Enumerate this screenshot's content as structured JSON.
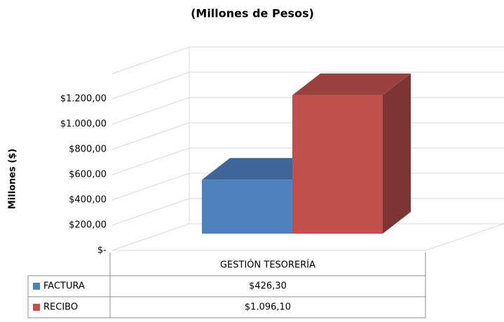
{
  "chart_data": {
    "type": "bar3d",
    "title": "(Millones de Pesos)",
    "y_label": "Millones ($)",
    "categories": [
      "GESTIÓN TESORERÍA"
    ],
    "series": [
      {
        "name": "FACTURA",
        "color": "#4f81bd",
        "values": [
          426.3
        ],
        "value_labels": [
          "$426,30"
        ]
      },
      {
        "name": "RECIBO",
        "color": "#c0504d",
        "values": [
          1096.1
        ],
        "value_labels": [
          "$1.096,10"
        ]
      }
    ],
    "ylim": [
      0,
      1400
    ],
    "yticks": [
      {
        "value": 0,
        "label": "$-"
      },
      {
        "value": 200,
        "label": "$200,00"
      },
      {
        "value": 400,
        "label": "$400,00"
      },
      {
        "value": 600,
        "label": "$600,00"
      },
      {
        "value": 800,
        "label": "$800,00"
      },
      {
        "value": 1000,
        "label": "$1.000,00"
      },
      {
        "value": 1200,
        "label": "$1.200,00"
      }
    ],
    "grid": true,
    "data_table": true
  }
}
